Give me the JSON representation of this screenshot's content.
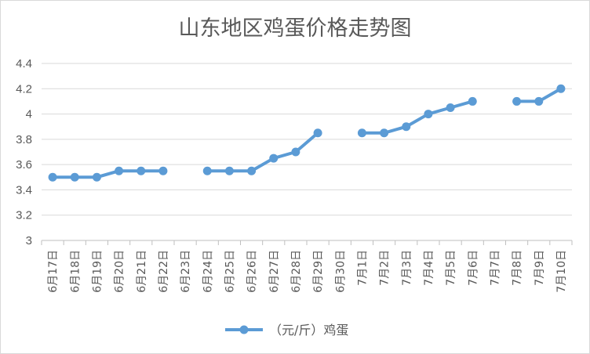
{
  "chart_data": {
    "type": "line",
    "title": "山东地区鸡蛋价格走势图",
    "categories": [
      "6月17日",
      "6月18日",
      "6月19日",
      "6月20日",
      "6月21日",
      "6月22日",
      "6月23日",
      "6月24日",
      "6月25日",
      "6月26日",
      "6月27日",
      "6月28日",
      "6月29日",
      "6月30日",
      "7月1日",
      "7月2日",
      "7月3日",
      "7月4日",
      "7月5日",
      "7月6日",
      "7月7日",
      "7月8日",
      "7月9日",
      "7月10日"
    ],
    "series": [
      {
        "name": "（元/斤）鸡蛋",
        "values": [
          3.5,
          3.5,
          3.5,
          3.55,
          3.55,
          3.55,
          null,
          3.55,
          3.55,
          3.55,
          3.65,
          3.7,
          3.85,
          null,
          3.85,
          3.85,
          3.9,
          4.0,
          4.05,
          4.1,
          null,
          4.1,
          4.1,
          4.2
        ],
        "color": "#5B9BD5"
      }
    ],
    "ylim": [
      3,
      4.4
    ],
    "yticks": [
      "3",
      "3.2",
      "3.4",
      "3.6",
      "3.8",
      "4",
      "4.2",
      "4.4"
    ],
    "grid": true,
    "legend": "bottom",
    "xlabel": "",
    "ylabel": ""
  }
}
